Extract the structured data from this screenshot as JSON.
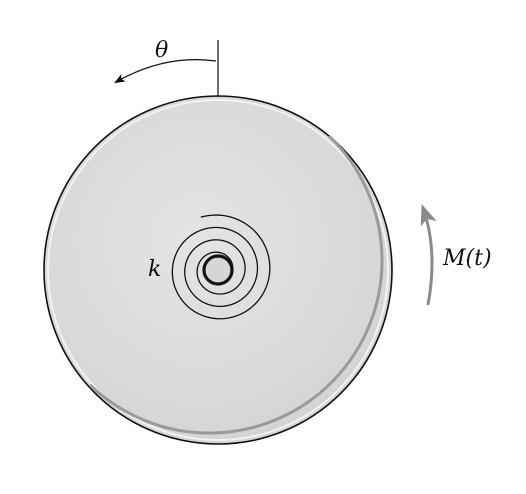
{
  "labels": {
    "angle": "θ",
    "stiffness": "k",
    "moment": "M(t)"
  },
  "colors": {
    "disk_fill": "#d7d7d7",
    "disk_outline": "#111111",
    "rim_highlight": "#9a9a9a",
    "moment_arrow": "#8a8a8a",
    "ink": "#111111"
  }
}
